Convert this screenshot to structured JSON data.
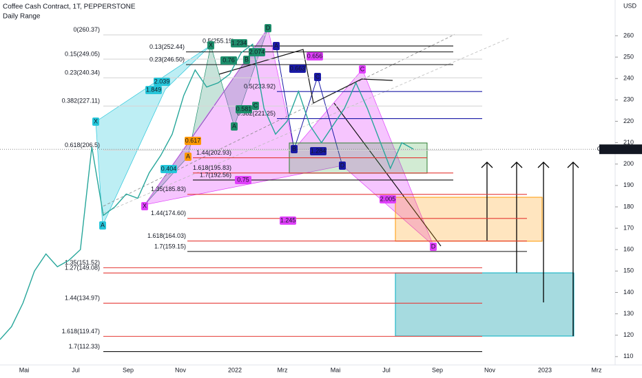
{
  "header": {
    "title": "Coffee Cash Contract, 1T, PEPPERSTONE",
    "subtitle": "Daily Range"
  },
  "price_axis": {
    "unit": "USD",
    "ylim": [
      106.1,
      276.7
    ],
    "yticks": [
      110,
      120,
      130,
      140,
      150,
      160,
      170,
      180,
      190,
      200,
      210,
      220,
      230,
      240,
      250,
      260
    ]
  },
  "time_axis": {
    "labels": [
      "Mai",
      "Jul",
      "Sep",
      "Nov",
      "2022",
      "Mrz",
      "Mai",
      "Jul",
      "Sep",
      "Nov",
      "2023",
      "Mrz"
    ]
  },
  "current_price": {
    "symbol": "COFFEE",
    "value": 206.92
  },
  "price_line": {
    "color": "#26a69a",
    "values": [
      118,
      124,
      135,
      150,
      158,
      152,
      155,
      160,
      208,
      176,
      180,
      186,
      184,
      196,
      204,
      214,
      232,
      244,
      236,
      238,
      242,
      252,
      256,
      226,
      214,
      220,
      234,
      218,
      210,
      218,
      226,
      238,
      226,
      212,
      198,
      210,
      207
    ]
  },
  "fib_levels": [
    {
      "label": "0(260.37)",
      "value": 260.37,
      "color": "#d6d6d6"
    },
    {
      "label": "0.13(252.44)",
      "value": 252.44,
      "color": "#111111"
    },
    {
      "label": "0.15(249.05)",
      "value": 249.05,
      "color": "#d6d6d6"
    },
    {
      "label": "0.23(246.50)",
      "value": 246.5,
      "color": "#111111"
    },
    {
      "label": "0.23(240.34)",
      "value": 240.34,
      "color": "#d6d6d6"
    },
    {
      "label": "0.382(227.11)",
      "value": 227.11,
      "color": "#d6d6d6"
    },
    {
      "label": "0.618(206.5)",
      "value": 206.5,
      "color": "#d6d6d6"
    },
    {
      "label": "0.5(255.19)",
      "value": 255.19,
      "color": "#111111"
    },
    {
      "label": "0.5(233.92)",
      "value": 233.92,
      "color": "#1a1aa6"
    },
    {
      "label": "0.382(221.25)",
      "value": 221.25,
      "color": "#1a1aa6"
    },
    {
      "label": "1.44(202.93)",
      "value": 202.93,
      "color": "#e53935"
    },
    {
      "label": "1.618(195.83)",
      "value": 195.83,
      "color": "#e53935"
    },
    {
      "label": "1.7(192.56)",
      "value": 192.56,
      "color": "#111111"
    },
    {
      "label": "1.35(185.83)",
      "value": 185.83,
      "color": "#e53935"
    },
    {
      "label": "1.44(174.60)",
      "value": 174.6,
      "color": "#e53935"
    },
    {
      "label": "1.618(164.03)",
      "value": 164.03,
      "color": "#e53935"
    },
    {
      "label": "1.7(159.15)",
      "value": 159.15,
      "color": "#111111"
    },
    {
      "label": "1.35(151.52)",
      "value": 151.52,
      "color": "#e53935"
    },
    {
      "label": "1.27(149.08)",
      "value": 149.08,
      "color": "#e53935"
    },
    {
      "label": "1.44(134.97)",
      "value": 134.97,
      "color": "#e53935"
    },
    {
      "label": "1.618(119.47)",
      "value": 119.47,
      "color": "#e53935"
    },
    {
      "label": "1.7(112.33)",
      "value": 112.33,
      "color": "#111111"
    }
  ],
  "pattern_labels": [
    {
      "text": "X",
      "color": "#26c6da"
    },
    {
      "text": "A",
      "color": "#26c6da"
    },
    {
      "text": "X",
      "color": "#e040fb"
    },
    {
      "text": "A",
      "color": "#ff9800"
    },
    {
      "text": "X",
      "color": "#1e8f6c"
    },
    {
      "text": "A",
      "color": "#1e8f6c"
    },
    {
      "text": "B",
      "color": "#1e8f6c"
    },
    {
      "text": "C",
      "color": "#1e8f6c"
    },
    {
      "text": "D",
      "color": "#1e8f6c"
    },
    {
      "text": "A",
      "color": "#1a1aa6"
    },
    {
      "text": "B",
      "color": "#1a1aa6"
    },
    {
      "text": "C",
      "color": "#1a1aa6"
    },
    {
      "text": "D",
      "color": "#1a1aa6"
    },
    {
      "text": "C",
      "color": "#e040fb"
    },
    {
      "text": "D",
      "color": "#e040fb"
    },
    {
      "text": "1.849",
      "color": "#26c6da"
    },
    {
      "text": "2.039",
      "color": "#26c6da"
    },
    {
      "text": "0.404",
      "color": "#26c6da"
    },
    {
      "text": "0.617",
      "color": "#ff9800"
    },
    {
      "text": "1.234",
      "color": "#1e8f6c"
    },
    {
      "text": "2.074",
      "color": "#1e8f6c"
    },
    {
      "text": "0.76",
      "color": "#1e8f6c"
    },
    {
      "text": "0.581",
      "color": "#1e8f6c"
    },
    {
      "text": "0.656",
      "color": "#e040fb"
    },
    {
      "text": "0.663",
      "color": "#1a1aa6"
    },
    {
      "text": "1.284",
      "color": "#1a1aa6"
    },
    {
      "text": "0.75",
      "color": "#e040fb"
    },
    {
      "text": "2.005",
      "color": "#e040fb"
    },
    {
      "text": "1.245",
      "color": "#e040fb"
    }
  ]
}
